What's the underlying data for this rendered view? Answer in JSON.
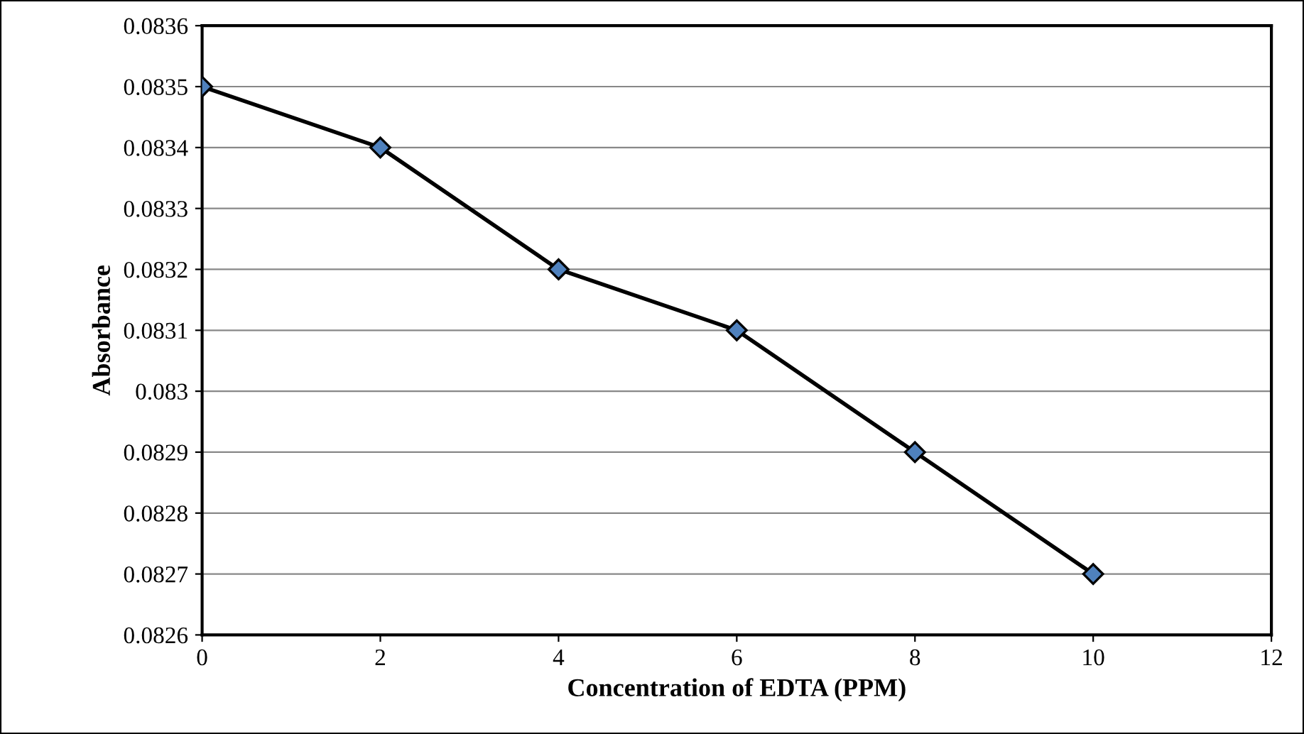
{
  "chart_data": {
    "type": "line",
    "xlabel": "Concentration of EDTA (PPM)",
    "ylabel": "Absorbance",
    "x": [
      0,
      2,
      4,
      6,
      8,
      10
    ],
    "series": [
      {
        "color": "#000000",
        "values": [
          0.0835,
          0.0834,
          0.0832,
          0.0831,
          0.0829,
          0.0827
        ]
      }
    ],
    "xlim": [
      0,
      12
    ],
    "xticks": [
      0,
      2,
      4,
      6,
      8,
      10,
      12
    ],
    "ylim": [
      0.0826,
      0.0836
    ],
    "yticks": [
      0.0826,
      0.0827,
      0.0828,
      0.0829,
      0.083,
      0.0831,
      0.0832,
      0.0833,
      0.0834,
      0.0835,
      0.0836
    ],
    "grid": "y",
    "legend": false,
    "marker": "diamond",
    "line_style": "solid"
  }
}
